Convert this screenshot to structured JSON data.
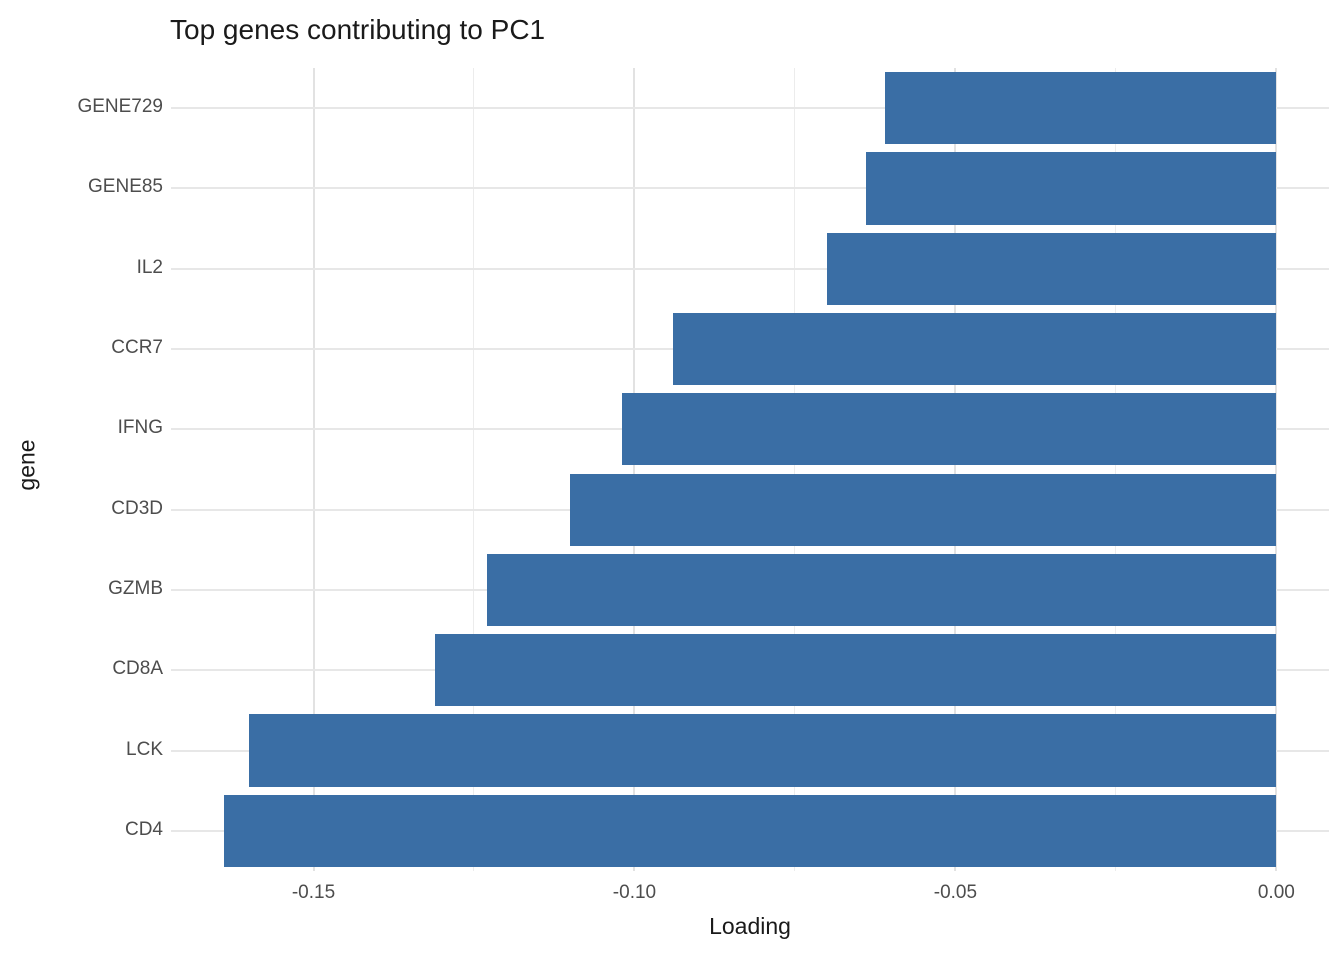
{
  "title": "Top genes contributing to PC1",
  "chart_data": {
    "type": "bar",
    "orientation": "horizontal",
    "title": "Top genes contributing to PC1",
    "xlabel": "Loading",
    "ylabel": "gene",
    "categories": [
      "GENE729",
      "GENE85",
      "IL2",
      "CCR7",
      "IFNG",
      "CD3D",
      "GZMB",
      "CD8A",
      "LCK",
      "CD4"
    ],
    "values": [
      -0.061,
      -0.064,
      -0.07,
      -0.094,
      -0.102,
      -0.11,
      -0.123,
      -0.131,
      -0.16,
      -0.164
    ],
    "xlim": [
      -0.1722,
      0.0082
    ],
    "x_major_ticks": [
      -0.15,
      -0.1,
      -0.05,
      0.0
    ],
    "x_major_tick_labels": [
      "-0.15",
      "-0.10",
      "-0.05",
      "0.00"
    ],
    "x_minor_ticks": [
      -0.125,
      -0.075,
      -0.025
    ],
    "bar_width_fraction": 0.9,
    "legend": "none",
    "grid": "on",
    "style": {
      "bar_fill": "#3a6ea5",
      "background": "#ffffff",
      "grid_major_color": "#e2e2e2",
      "grid_minor_color": "#ececec",
      "axis_text_color": "#4d4d4d",
      "title_color": "#1a1a1a"
    }
  }
}
